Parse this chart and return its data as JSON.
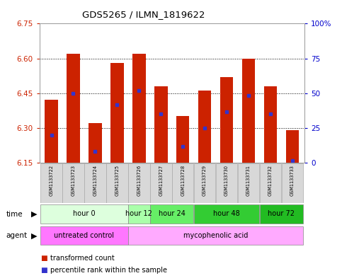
{
  "title": "GDS5265 / ILMN_1819622",
  "samples": [
    "GSM1133722",
    "GSM1133723",
    "GSM1133724",
    "GSM1133725",
    "GSM1133726",
    "GSM1133727",
    "GSM1133728",
    "GSM1133729",
    "GSM1133730",
    "GSM1133731",
    "GSM1133732",
    "GSM1133733"
  ],
  "bar_bottoms": [
    6.15,
    6.15,
    6.15,
    6.15,
    6.15,
    6.15,
    6.15,
    6.15,
    6.15,
    6.15,
    6.15,
    6.15
  ],
  "bar_tops": [
    6.42,
    6.62,
    6.32,
    6.58,
    6.62,
    6.48,
    6.35,
    6.46,
    6.52,
    6.6,
    6.48,
    6.29
  ],
  "blue_dots": [
    6.27,
    6.45,
    6.2,
    6.4,
    6.46,
    6.36,
    6.22,
    6.3,
    6.37,
    6.44,
    6.36,
    6.16
  ],
  "ylim_left": [
    6.15,
    6.75
  ],
  "ylim_right": [
    0,
    100
  ],
  "yticks_left": [
    6.15,
    6.3,
    6.45,
    6.6,
    6.75
  ],
  "yticks_right": [
    0,
    25,
    50,
    75,
    100
  ],
  "ytick_right_labels": [
    "0",
    "25",
    "50",
    "75",
    "100%"
  ],
  "bar_color": "#cc2200",
  "dot_color": "#3333cc",
  "time_groups": [
    {
      "label": "hour 0",
      "start": 0,
      "end": 3,
      "color": "#ddffdd"
    },
    {
      "label": "hour 12",
      "start": 4,
      "end": 4,
      "color": "#aaffaa"
    },
    {
      "label": "hour 24",
      "start": 5,
      "end": 6,
      "color": "#66ee66"
    },
    {
      "label": "hour 48",
      "start": 7,
      "end": 9,
      "color": "#33cc33"
    },
    {
      "label": "hour 72",
      "start": 10,
      "end": 11,
      "color": "#22bb22"
    }
  ],
  "agent_groups": [
    {
      "label": "untreated control",
      "start": 0,
      "end": 3,
      "color": "#ff77ff"
    },
    {
      "label": "mycophenolic acid",
      "start": 4,
      "end": 11,
      "color": "#ffaaff"
    }
  ],
  "left_axis_color": "#cc2200",
  "right_axis_color": "#0000cc"
}
